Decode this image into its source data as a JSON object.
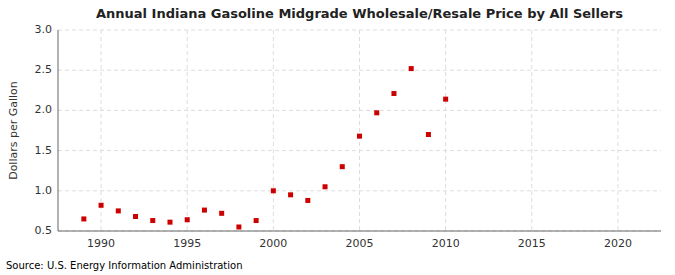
{
  "chart_data": {
    "type": "scatter",
    "title": "Annual Indiana Gasoline Midgrade Wholesale/Resale Price by All Sellers",
    "ylabel": "Dollars per Gallon",
    "source": "Source: U.S. Energy Information Administration",
    "x": [
      1989,
      1990,
      1991,
      1992,
      1993,
      1994,
      1995,
      1996,
      1997,
      1998,
      1999,
      2000,
      2001,
      2002,
      2003,
      2004,
      2005,
      2006,
      2007,
      2008,
      2009,
      2010
    ],
    "values": [
      0.65,
      0.82,
      0.75,
      0.68,
      0.63,
      0.61,
      0.64,
      0.76,
      0.72,
      0.55,
      0.63,
      1.0,
      0.95,
      0.88,
      1.05,
      1.3,
      1.68,
      1.97,
      2.21,
      2.52,
      1.7,
      2.14
    ],
    "color": "#cc0000",
    "marker": "square",
    "xlim": [
      1987.5,
      2022.5
    ],
    "ylim": [
      0.5,
      3.0
    ],
    "xticks": [
      1990,
      1995,
      2000,
      2005,
      2010,
      2015,
      2020
    ],
    "yticks": [
      0.5,
      {
        "value": 1.0,
        "label": "1.0"
      },
      1.5,
      {
        "value": 2.0,
        "label": "2.0"
      },
      2.5,
      {
        "value": 3.0,
        "label": "3.0"
      }
    ],
    "grid": true
  }
}
